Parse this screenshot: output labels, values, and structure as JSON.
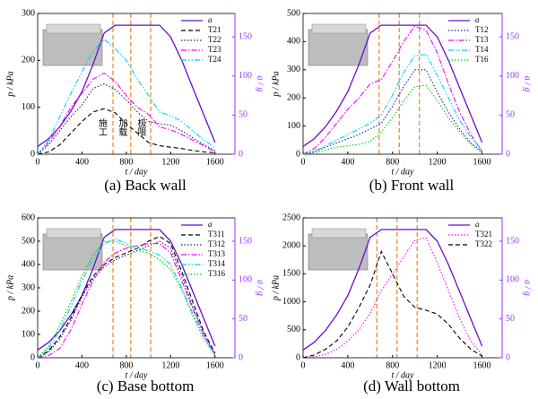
{
  "chart_data": [
    {
      "type": "line",
      "caption": "(a) Back wall",
      "xlabel": "t / day",
      "ylabel": "p / kPa",
      "y2label": "a / g",
      "x": [
        0,
        100,
        200,
        300,
        400,
        500,
        600,
        700,
        800,
        900,
        1000,
        1100,
        1200,
        1300,
        1400,
        1500,
        1600
      ],
      "xlim": [
        0,
        1780
      ],
      "xticks": [
        0,
        400,
        800,
        1200,
        1600
      ],
      "ylim": [
        0,
        300
      ],
      "yticks": [
        0,
        100,
        200,
        300
      ],
      "y2lim": [
        0,
        180
      ],
      "y2ticks": [
        0,
        50,
        100,
        150
      ],
      "vlines": [
        680,
        840,
        1020
      ],
      "vline_color": "#f08020",
      "annotations": [
        "施工",
        "加载",
        "极限"
      ],
      "legend": "upper right",
      "series": [
        {
          "name": "a",
          "color": "#6a0dcc",
          "dash": "solid",
          "axis": "y2",
          "values": [
            10,
            20,
            35,
            55,
            80,
            115,
            155,
            165,
            165,
            165,
            165,
            165,
            150,
            120,
            85,
            50,
            15
          ]
        },
        {
          "name": "T21",
          "color": "#000000",
          "dash": "dashed",
          "values": [
            0,
            5,
            20,
            45,
            70,
            90,
            97,
            88,
            65,
            45,
            25,
            18,
            15,
            12,
            8,
            5,
            3
          ]
        },
        {
          "name": "T22",
          "color": "#1f1f8f",
          "dash": "dotted",
          "values": [
            0,
            20,
            50,
            80,
            105,
            140,
            150,
            138,
            115,
            90,
            70,
            65,
            62,
            50,
            35,
            20,
            8
          ]
        },
        {
          "name": "T23",
          "color": "#ff00ff",
          "dash": "dashdot",
          "values": [
            0,
            25,
            60,
            100,
            130,
            160,
            173,
            155,
            125,
            100,
            85,
            58,
            52,
            42,
            30,
            18,
            5
          ]
        },
        {
          "name": "T24",
          "color": "#00ccff",
          "dash": "dashdotdot",
          "values": [
            0,
            30,
            80,
            130,
            175,
            220,
            245,
            225,
            200,
            160,
            125,
            90,
            82,
            70,
            50,
            30,
            15
          ]
        }
      ]
    },
    {
      "type": "line",
      "caption": "(b) Front wall",
      "xlabel": "t / day",
      "ylabel": "p / kPa",
      "y2label": "a / g",
      "x": [
        0,
        100,
        200,
        300,
        400,
        500,
        600,
        700,
        800,
        900,
        1000,
        1100,
        1200,
        1300,
        1400,
        1500,
        1600
      ],
      "xlim": [
        0,
        1780
      ],
      "xticks": [
        0,
        400,
        800,
        1200,
        1600
      ],
      "ylim": [
        0,
        500
      ],
      "yticks": [
        0,
        100,
        200,
        300,
        400,
        500
      ],
      "y2lim": [
        0,
        180
      ],
      "y2ticks": [
        0,
        50,
        100,
        150
      ],
      "vlines": [
        680,
        860,
        1040
      ],
      "vline_color": "#f08020",
      "legend": "upper right",
      "series": [
        {
          "name": "a",
          "color": "#6a0dcc",
          "dash": "solid",
          "axis": "y2",
          "values": [
            10,
            20,
            35,
            55,
            80,
            115,
            155,
            165,
            165,
            165,
            165,
            165,
            150,
            120,
            85,
            50,
            15
          ]
        },
        {
          "name": "T12",
          "color": "#1f1f8f",
          "dash": "dotted",
          "values": [
            0,
            10,
            25,
            40,
            55,
            70,
            90,
            110,
            170,
            240,
            300,
            300,
            220,
            150,
            90,
            40,
            10
          ]
        },
        {
          "name": "T13",
          "color": "#ff00ff",
          "dash": "dashdot",
          "values": [
            0,
            20,
            60,
            110,
            160,
            200,
            250,
            265,
            330,
            400,
            455,
            440,
            360,
            250,
            150,
            70,
            10
          ]
        },
        {
          "name": "T14",
          "color": "#00ccff",
          "dash": "dashdotdot",
          "values": [
            0,
            10,
            30,
            50,
            70,
            90,
            110,
            140,
            210,
            290,
            350,
            355,
            280,
            200,
            120,
            60,
            15
          ]
        },
        {
          "name": "T16",
          "color": "#00cc00",
          "dash": "dotted",
          "values": [
            0,
            5,
            15,
            25,
            30,
            35,
            45,
            80,
            130,
            190,
            240,
            245,
            190,
            130,
            80,
            35,
            5
          ]
        }
      ]
    },
    {
      "type": "line",
      "caption": "(c) Base bottom",
      "xlabel": "t / day",
      "ylabel": "p / kPa",
      "y2label": "a / g",
      "x": [
        0,
        100,
        200,
        300,
        400,
        500,
        600,
        700,
        800,
        900,
        1000,
        1100,
        1200,
        1300,
        1400,
        1500,
        1600
      ],
      "xlim": [
        0,
        1780
      ],
      "xticks": [
        0,
        400,
        800,
        1200,
        1600
      ],
      "ylim": [
        0,
        600
      ],
      "yticks": [
        0,
        100,
        200,
        300,
        400,
        500,
        600
      ],
      "y2lim": [
        0,
        180
      ],
      "y2ticks": [
        0,
        50,
        100,
        150
      ],
      "vlines": [
        680,
        840,
        1020
      ],
      "vline_color": "#f08020",
      "legend": "upper right",
      "series": [
        {
          "name": "a",
          "color": "#6a0dcc",
          "dash": "solid",
          "axis": "y2",
          "values": [
            10,
            20,
            35,
            55,
            80,
            115,
            155,
            165,
            165,
            165,
            165,
            165,
            150,
            120,
            85,
            50,
            15
          ]
        },
        {
          "name": "T311",
          "color": "#000000",
          "dash": "dashed",
          "values": [
            0,
            30,
            90,
            170,
            270,
            350,
            400,
            430,
            450,
            470,
            500,
            520,
            490,
            370,
            240,
            110,
            20
          ]
        },
        {
          "name": "T312",
          "color": "#1f1f8f",
          "dash": "dotted",
          "values": [
            0,
            25,
            80,
            160,
            260,
            340,
            390,
            420,
            440,
            460,
            480,
            500,
            470,
            350,
            220,
            100,
            15
          ]
        },
        {
          "name": "T313",
          "color": "#ff00ff",
          "dash": "dashdot",
          "values": [
            0,
            10,
            40,
            120,
            230,
            330,
            410,
            450,
            470,
            480,
            490,
            490,
            450,
            330,
            210,
            100,
            15
          ]
        },
        {
          "name": "T314",
          "color": "#00ccff",
          "dash": "dashdotdot",
          "values": [
            0,
            40,
            120,
            220,
            330,
            420,
            490,
            510,
            490,
            470,
            460,
            440,
            400,
            300,
            190,
            90,
            10
          ]
        },
        {
          "name": "T316",
          "color": "#00cc00",
          "dash": "dotted",
          "values": [
            0,
            50,
            140,
            240,
            350,
            440,
            500,
            500,
            480,
            460,
            450,
            420,
            380,
            290,
            180,
            80,
            10
          ]
        }
      ]
    },
    {
      "type": "line",
      "caption": "(d) Wall bottom",
      "xlabel": "t / day",
      "ylabel": "p / kPa",
      "y2label": "a / g",
      "x": [
        0,
        100,
        200,
        300,
        400,
        500,
        600,
        700,
        800,
        900,
        1000,
        1100,
        1200,
        1300,
        1400,
        1500,
        1600
      ],
      "xlim": [
        0,
        1780
      ],
      "xticks": [
        0,
        400,
        800,
        1200,
        1600
      ],
      "ylim": [
        0,
        2500
      ],
      "yticks": [
        0,
        500,
        1000,
        1500,
        2000,
        2500
      ],
      "y2lim": [
        0,
        180
      ],
      "y2ticks": [
        0,
        50,
        100,
        150
      ],
      "vlines": [
        660,
        840,
        1020
      ],
      "vline_color": "#f08020",
      "legend": "upper right",
      "series": [
        {
          "name": "a",
          "color": "#6a0dcc",
          "dash": "solid",
          "axis": "y2",
          "values": [
            10,
            20,
            35,
            55,
            80,
            115,
            155,
            165,
            165,
            165,
            165,
            165,
            150,
            120,
            85,
            50,
            15
          ]
        },
        {
          "name": "T321",
          "color": "#ff00ff",
          "dash": "dotted",
          "values": [
            0,
            20,
            60,
            150,
            300,
            500,
            800,
            1200,
            1500,
            1800,
            2100,
            2150,
            1700,
            1200,
            700,
            300,
            50
          ]
        },
        {
          "name": "T322",
          "color": "#000000",
          "dash": "dashed",
          "values": [
            0,
            50,
            150,
            300,
            550,
            900,
            1300,
            1900,
            1500,
            1100,
            900,
            850,
            780,
            600,
            350,
            150,
            30
          ]
        }
      ]
    }
  ]
}
